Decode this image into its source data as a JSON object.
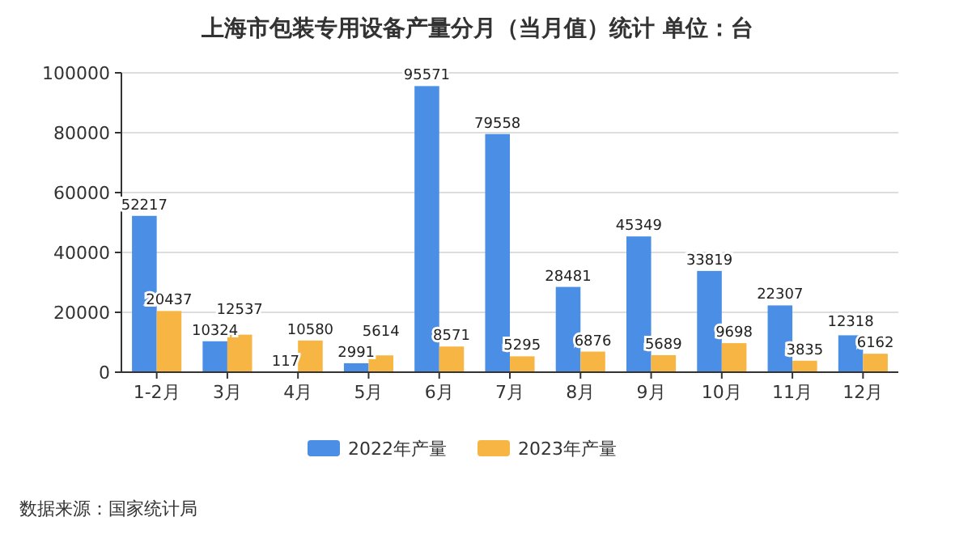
{
  "chart_data": {
    "type": "bar",
    "title": "上海市包装专用设备产量分月（当月值）统计 单位：台",
    "categories": [
      "1-2月",
      "3月",
      "4月",
      "5月",
      "6月",
      "7月",
      "8月",
      "9月",
      "10月",
      "11月",
      "12月"
    ],
    "series": [
      {
        "name": "2022年产量",
        "color": "#4a8ee6",
        "values": [
          52217,
          10324,
          117,
          2991,
          95571,
          79558,
          28481,
          45349,
          33819,
          22307,
          12318
        ]
      },
      {
        "name": "2023年产量",
        "color": "#f7b543",
        "values": [
          20437,
          12537,
          10580,
          5614,
          8571,
          5295,
          6876,
          5689,
          9698,
          3835,
          6162
        ]
      }
    ],
    "ylim": [
      0,
      100000
    ],
    "yticks": [
      0,
      20000,
      40000,
      60000,
      80000,
      100000
    ],
    "grid": "y",
    "legend": "bottom",
    "data_labels": true,
    "annotations": [
      "数据来源：国家统计局"
    ]
  }
}
